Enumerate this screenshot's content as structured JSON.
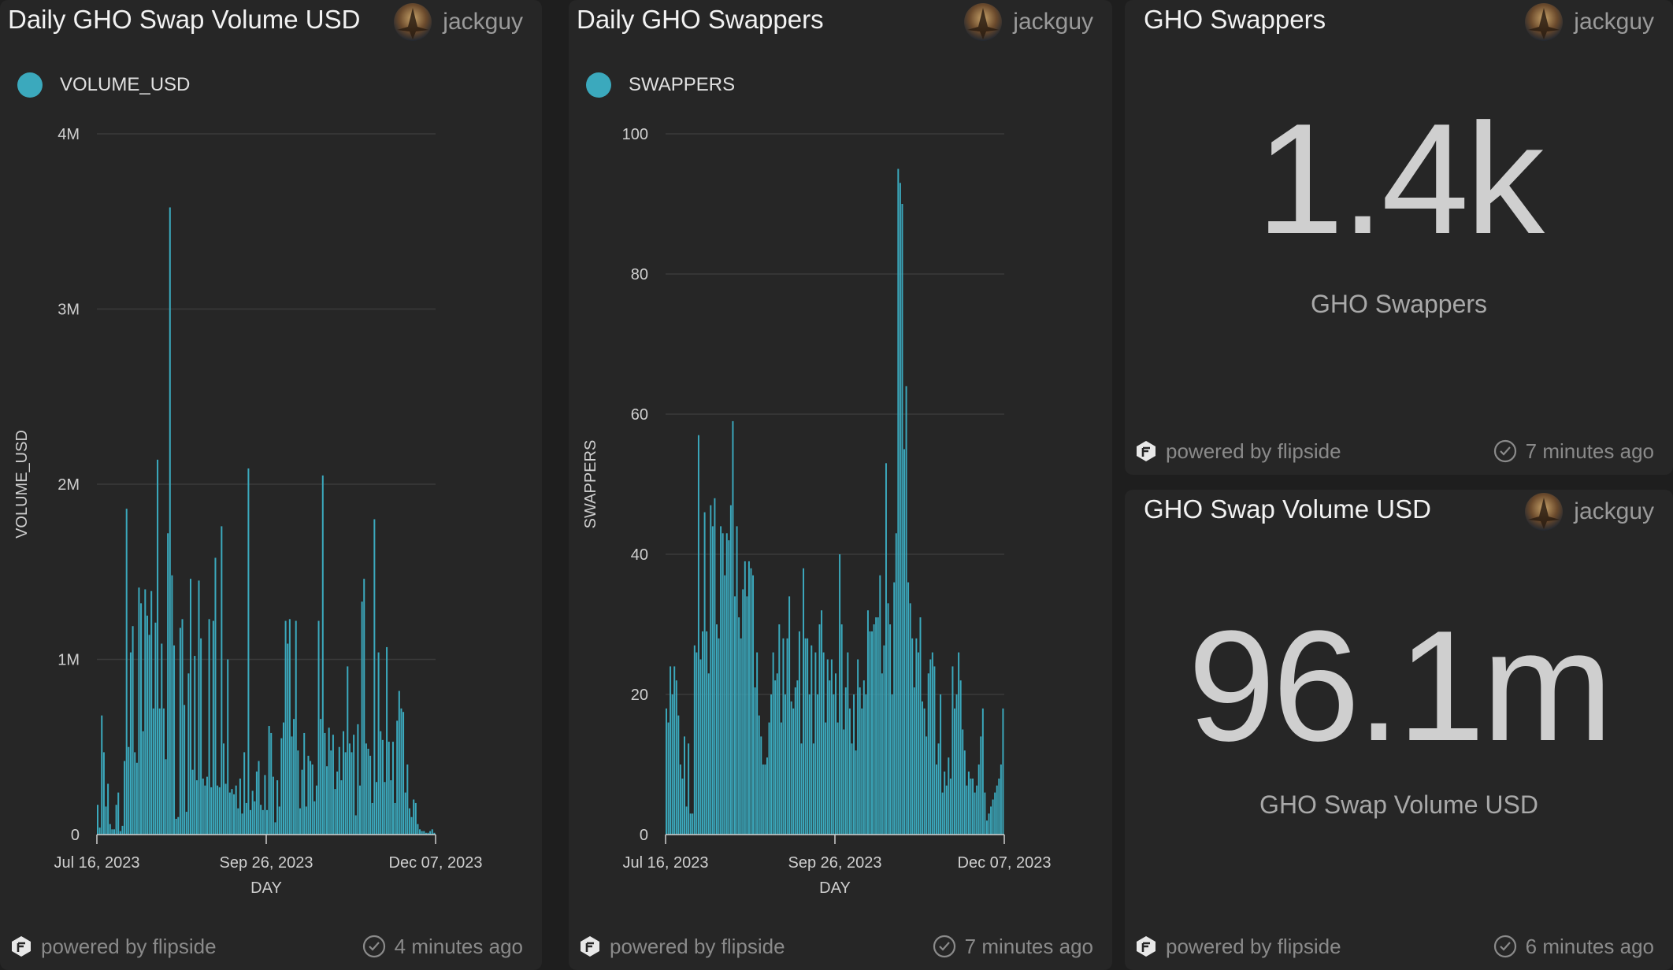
{
  "panels": [
    {
      "title": "Daily GHO Swap Volume USD",
      "author": "jackguy",
      "legend": "VOLUME_USD",
      "powered": "powered by flipside",
      "updated": "4 minutes ago"
    },
    {
      "title": "Daily GHO Swappers",
      "author": "jackguy",
      "legend": "SWAPPERS",
      "powered": "powered by flipside",
      "updated": "7 minutes ago"
    },
    {
      "title": "GHO Swappers",
      "author": "jackguy",
      "value": "1.4k",
      "label": "GHO Swappers",
      "powered": "powered by flipside",
      "updated": "7 minutes ago"
    },
    {
      "title": "GHO Swap Volume USD",
      "author": "jackguy",
      "value": "96.1m",
      "label": "GHO Swap Volume USD",
      "powered": "powered by flipside",
      "updated": "6 minutes ago"
    }
  ],
  "colors": {
    "bar": "#3ba9bd",
    "panel": "#262626",
    "background": "#1e1e1e"
  },
  "icons": {
    "avatar": "avatar-icon",
    "logo": "flipside-logo-icon",
    "check": "check-circle-icon"
  },
  "chart_data": [
    {
      "type": "bar",
      "title": "Daily GHO Swap Volume USD",
      "xlabel": "DAY",
      "ylabel": "VOLUME_USD",
      "ylim": [
        0,
        4000000
      ],
      "yticks": [
        0,
        1000000,
        2000000,
        3000000,
        4000000
      ],
      "ytick_labels": [
        "0",
        "1M",
        "2M",
        "3M",
        "4M"
      ],
      "xticks": [
        "Jul 16, 2023",
        "Sep 26, 2023",
        "Dec 07, 2023"
      ],
      "grid": true,
      "legend_position": "top-left",
      "series": [
        {
          "name": "VOLUME_USD",
          "start_date": "2023-07-16",
          "values": [
            170000,
            40000,
            680000,
            470000,
            160000,
            290000,
            60000,
            30000,
            30000,
            170000,
            240000,
            20000,
            50000,
            420000,
            1860000,
            500000,
            1040000,
            1190000,
            470000,
            410000,
            1410000,
            1320000,
            590000,
            1400000,
            1250000,
            1140000,
            1390000,
            720000,
            1210000,
            2140000,
            720000,
            1090000,
            720000,
            430000,
            1720000,
            3580000,
            1480000,
            1080000,
            90000,
            100000,
            1180000,
            1230000,
            740000,
            130000,
            920000,
            1460000,
            370000,
            1020000,
            310000,
            1450000,
            1120000,
            320000,
            280000,
            330000,
            1230000,
            270000,
            1220000,
            1580000,
            280000,
            270000,
            1760000,
            520000,
            290000,
            1000000,
            240000,
            260000,
            230000,
            280000,
            150000,
            320000,
            120000,
            470000,
            180000,
            2090000,
            140000,
            250000,
            190000,
            360000,
            420000,
            170000,
            140000,
            340000,
            140000,
            620000,
            580000,
            330000,
            70000,
            310000,
            160000,
            550000,
            640000,
            1220000,
            1090000,
            1230000,
            560000,
            660000,
            1220000,
            480000,
            150000,
            370000,
            580000,
            160000,
            450000,
            420000,
            400000,
            190000,
            280000,
            1220000,
            660000,
            2050000,
            580000,
            390000,
            610000,
            480000,
            570000,
            260000,
            360000,
            500000,
            310000,
            590000,
            470000,
            960000,
            520000,
            470000,
            570000,
            110000,
            630000,
            280000,
            1330000,
            1460000,
            520000,
            490000,
            450000,
            180000,
            1800000,
            300000,
            1040000,
            590000,
            540000,
            300000,
            1070000,
            530000,
            310000,
            530000,
            180000,
            650000,
            820000,
            720000,
            700000,
            240000,
            400000,
            150000,
            100000,
            200000,
            180000,
            60000,
            30000,
            20000,
            20000,
            10000,
            10000,
            20000,
            30000,
            10000
          ]
        }
      ]
    },
    {
      "type": "bar",
      "title": "Daily GHO Swappers",
      "xlabel": "DAY",
      "ylabel": "SWAPPERS",
      "ylim": [
        0,
        100
      ],
      "yticks": [
        0,
        20,
        40,
        60,
        80,
        100
      ],
      "ytick_labels": [
        "0",
        "20",
        "40",
        "60",
        "80",
        "100"
      ],
      "xticks": [
        "Jul 16, 2023",
        "Sep 26, 2023",
        "Dec 07, 2023"
      ],
      "grid": true,
      "legend_position": "top-left",
      "series": [
        {
          "name": "SWAPPERS",
          "start_date": "2023-07-16",
          "values": [
            18,
            16,
            24,
            20,
            24,
            22,
            17,
            10,
            8,
            14,
            4,
            13,
            3,
            3,
            27,
            26,
            57,
            25,
            29,
            46,
            29,
            23,
            47,
            44,
            48,
            30,
            28,
            44,
            43,
            37,
            43,
            42,
            47,
            59,
            34,
            44,
            31,
            28,
            35,
            39,
            34,
            39,
            38,
            37,
            21,
            26,
            17,
            14,
            10,
            10,
            11,
            16,
            20,
            26,
            22,
            23,
            30,
            16,
            28,
            20,
            28,
            34,
            19,
            18,
            21,
            22,
            29,
            13,
            38,
            28,
            28,
            20,
            27,
            13,
            26,
            20,
            30,
            32,
            26,
            16,
            25,
            22,
            25,
            20,
            23,
            16,
            40,
            30,
            15,
            21,
            26,
            18,
            13,
            20,
            12,
            25,
            21,
            18,
            22,
            20,
            32,
            29,
            29,
            30,
            31,
            31,
            37,
            23,
            27,
            53,
            33,
            30,
            20,
            36,
            43,
            95,
            93,
            90,
            55,
            64,
            36,
            33,
            28,
            21,
            28,
            26,
            31,
            19,
            18,
            14,
            23,
            25,
            26,
            24,
            10,
            13,
            20,
            6,
            9,
            7,
            11,
            8,
            24,
            18,
            20,
            26,
            22,
            15,
            12,
            7,
            9,
            8,
            8,
            6,
            7,
            10,
            14,
            18,
            6,
            2,
            3,
            4,
            5,
            6,
            7,
            8,
            10,
            18
          ]
        }
      ]
    }
  ]
}
